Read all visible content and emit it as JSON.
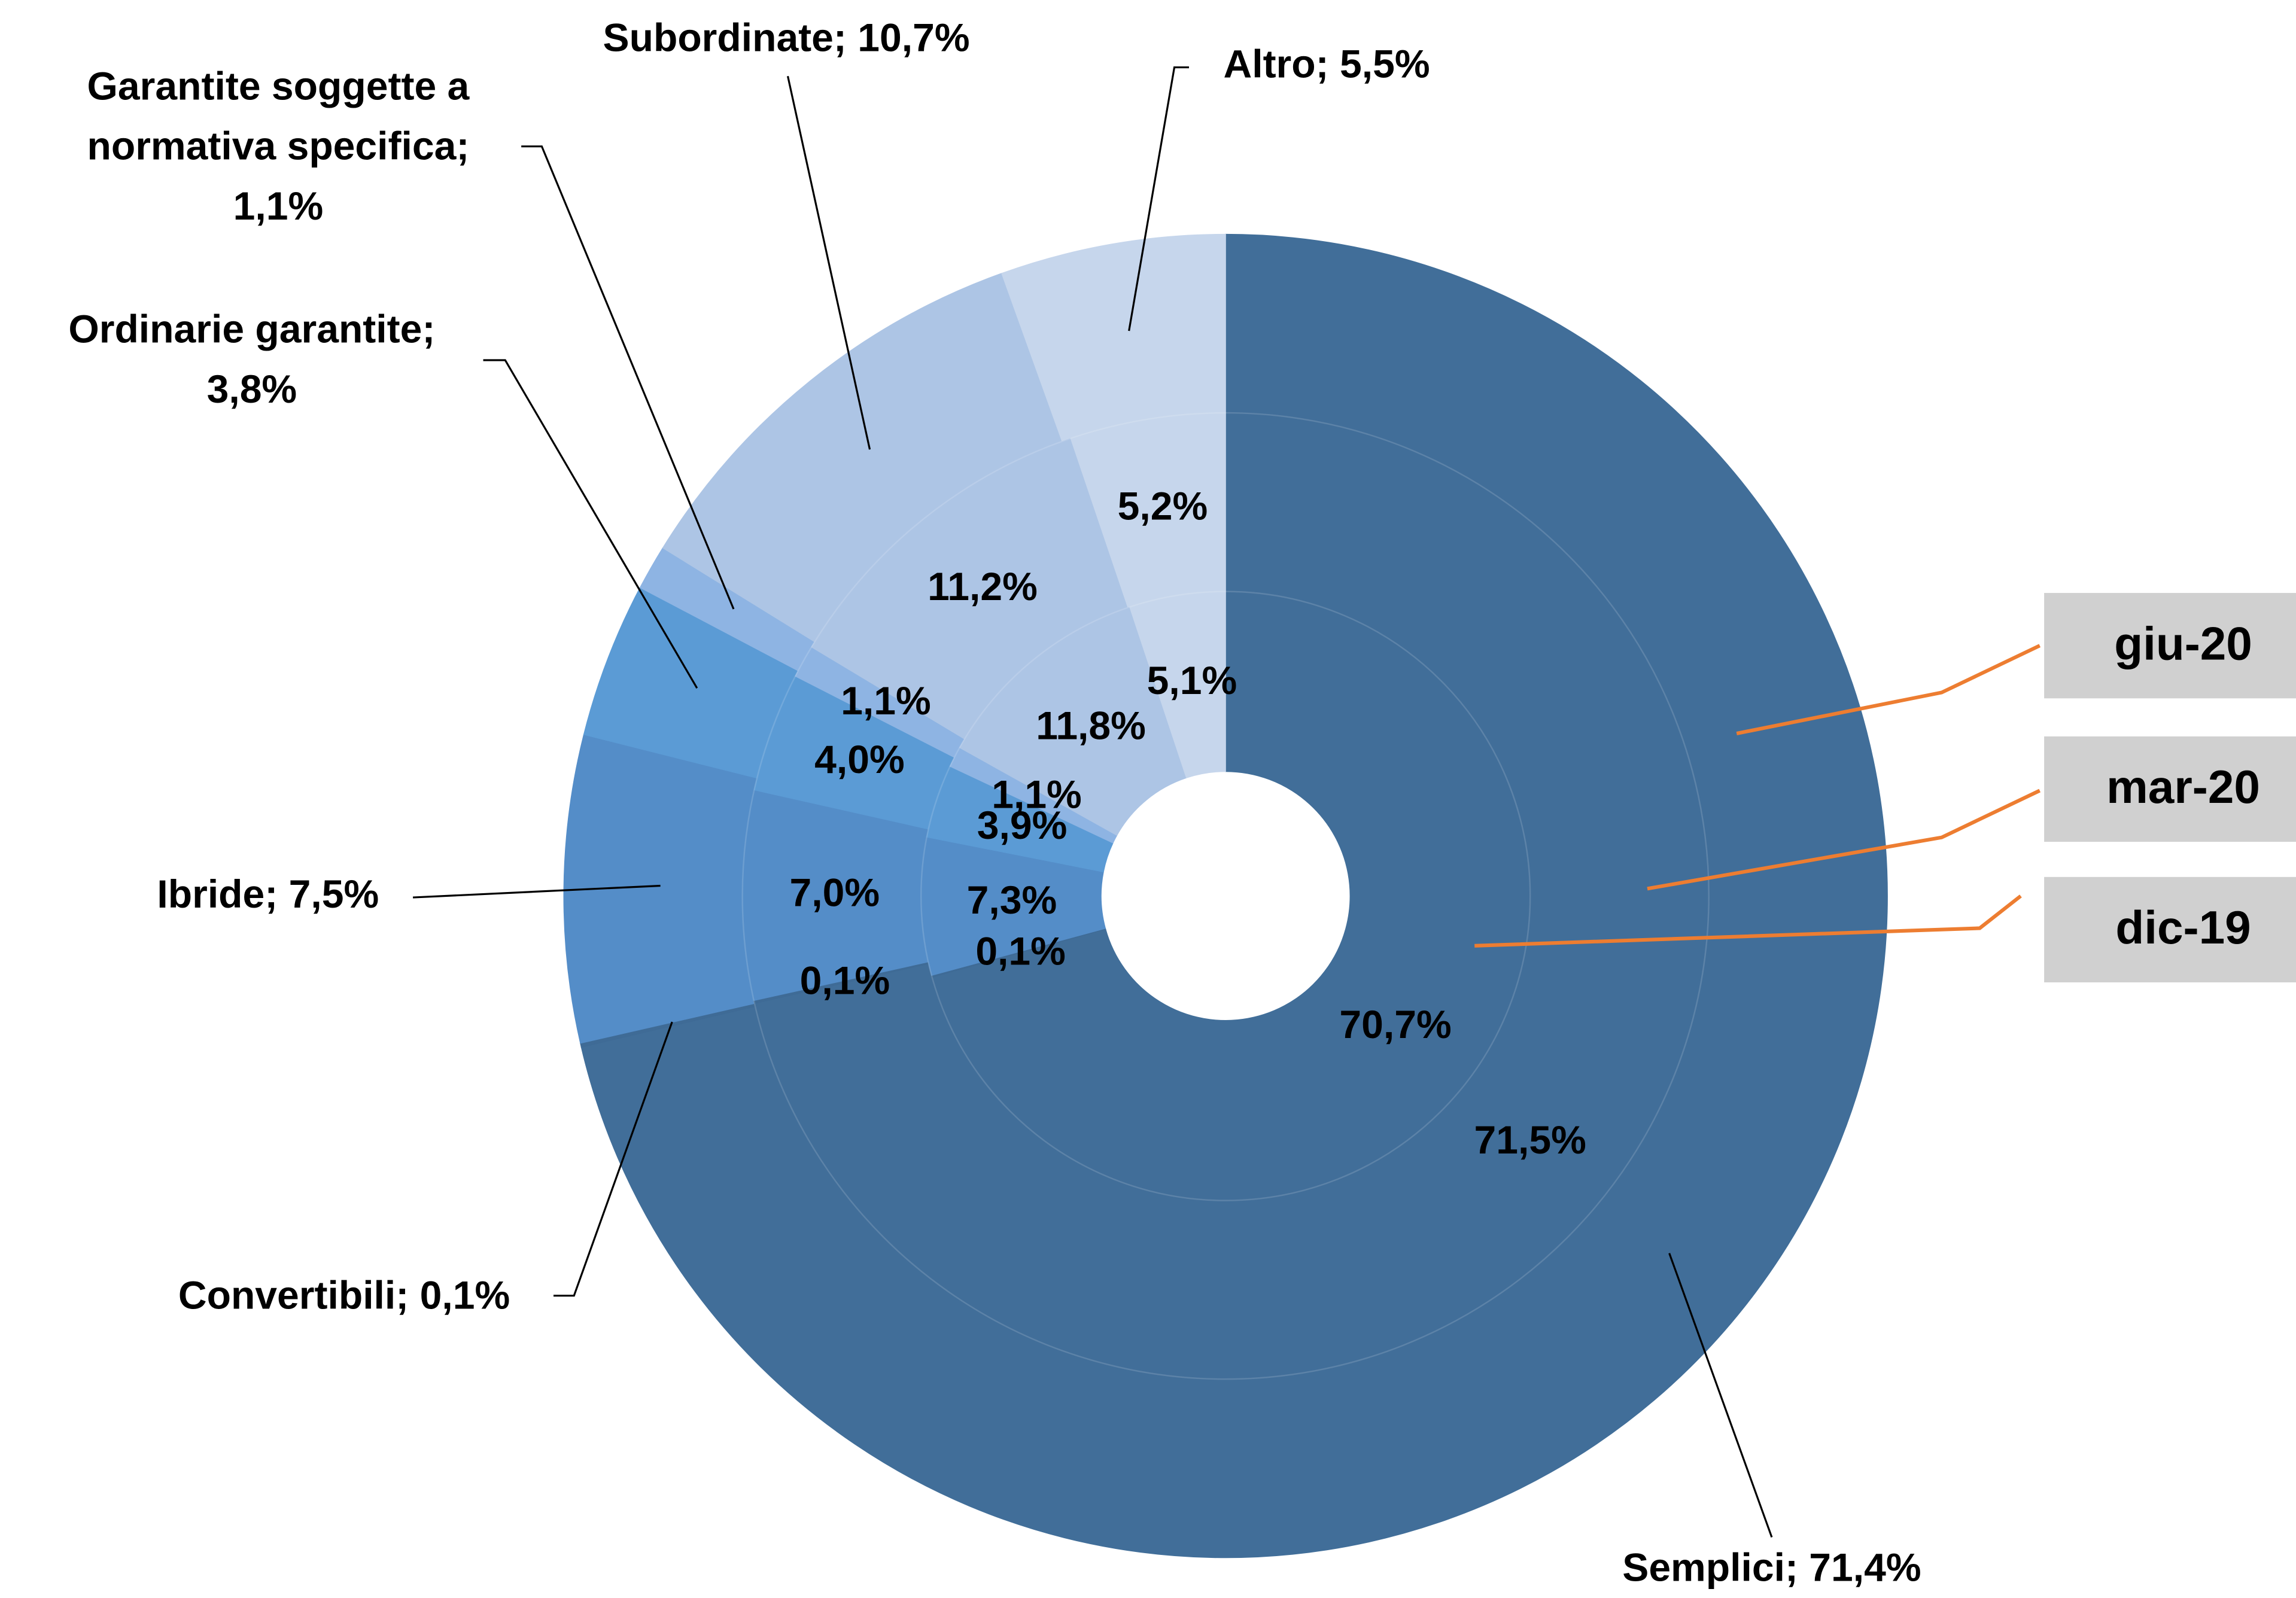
{
  "chart_data": {
    "type": "multi-donut",
    "series": [
      {
        "name": "giu-20",
        "values": [
          71.4,
          0.1,
          7.5,
          3.8,
          1.1,
          10.7,
          5.5
        ],
        "value_labels": [
          "Semplici; 71,4%",
          "Convertibili; 0,1%",
          "Ibride; 7,5%",
          "Ordinarie garantite;\n3,8%",
          "Garantite soggette a\nnormativa specifica;\n1,1%",
          "Subordinate; 10,7%",
          "Altro; 5,5%"
        ]
      },
      {
        "name": "mar-20",
        "values": [
          71.5,
          0.1,
          7.0,
          4.0,
          1.1,
          11.2,
          5.2
        ],
        "value_labels": [
          "71,5%",
          "0,1%",
          "7,0%",
          "4,0%",
          "1,1%",
          "11,2%",
          "5,2%"
        ]
      },
      {
        "name": "dic-19",
        "values": [
          70.7,
          0.1,
          7.3,
          3.9,
          1.1,
          11.8,
          5.1
        ],
        "value_labels": [
          "70,7%",
          "0,1%",
          "7,3%",
          "3,9%",
          "1,1%",
          "11,8%",
          "5,1%"
        ]
      }
    ],
    "colors": [
      "#416e99",
      "#3f6b96",
      "#548dc8",
      "#5b9bd5",
      "#8eb4e3",
      "#adc5e5",
      "#c6d6ec"
    ]
  }
}
